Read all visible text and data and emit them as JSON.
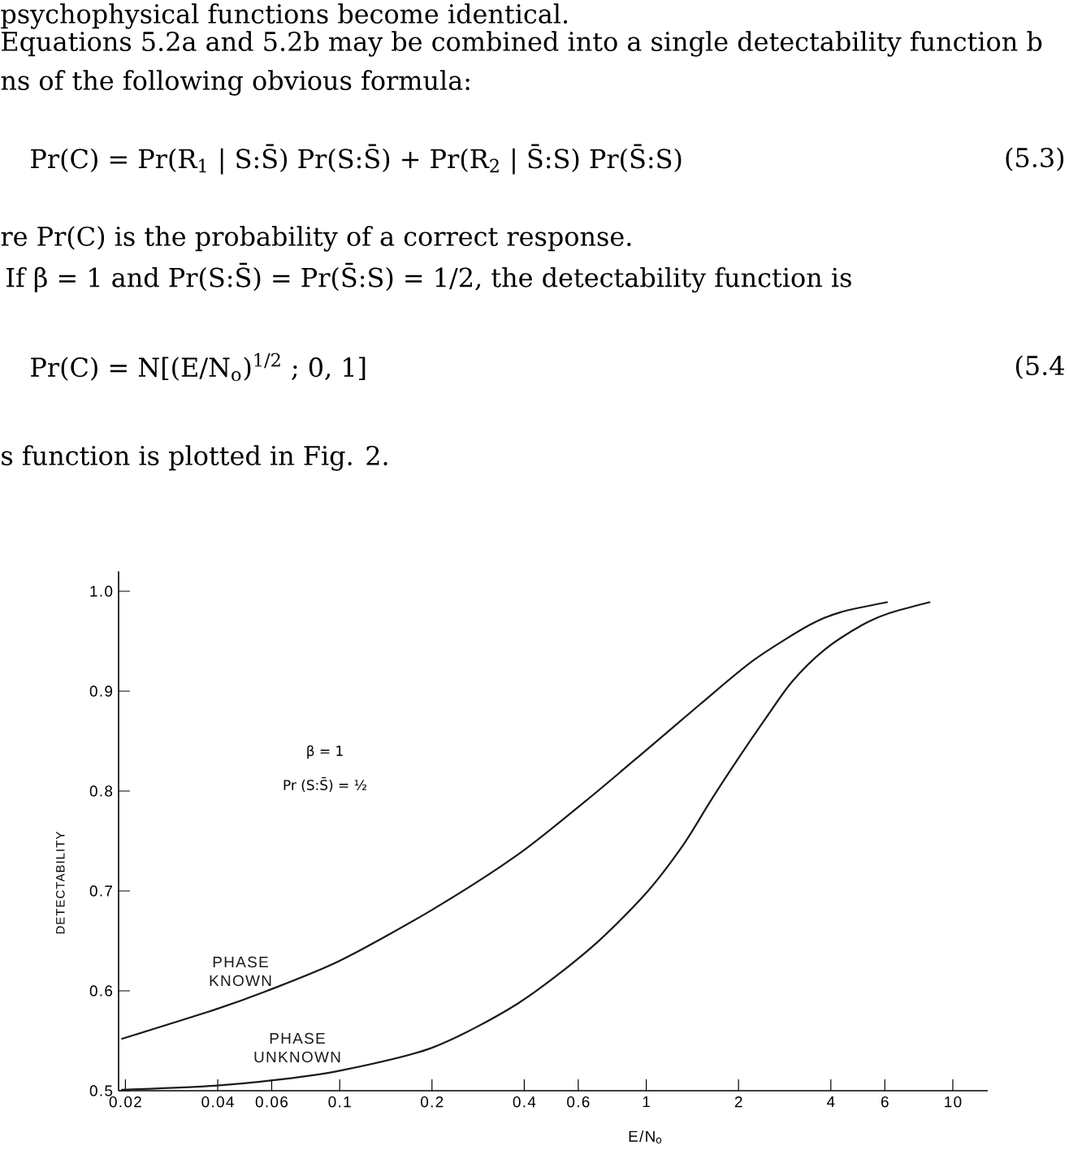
{
  "chart_data": {
    "type": "line",
    "xlabel": "E/N$_{o}$",
    "ylabel": "DETECTABILITY",
    "annotations": [
      "psychophysical functions become identical.",
      "Equations 5.2a and 5.2b may be combined into a single detectability function b",
      "ns of the following obvious formula:",
      "Pr(C) = Pr(R$_{1}$ | S:S̄) Pr(S:S̄) + Pr(R$_{2}$ | S̄:S) Pr(S̄:S)",
      "(5.3)",
      "re Pr(C) is the probability of a correct response.",
      "If β = 1 and Pr(S:S̄) = Pr(S̄:S) = 1/2, the detectability function is",
      "Pr(C) = N[(E/N$_{o}$)$^{1/2}$ ; 0, 1]",
      "(5.4",
      "s function is plotted in Fig. 2.",
      "β = 1",
      "Pr (S:S̄) = ½"
    ],
    "series": [
      {
        "name": "PHASE KNOWN",
        "color": "#1a1a1a",
        "x": [
          0.0195,
          0.039,
          0.058,
          0.1,
          0.2,
          0.38,
          0.64,
          1.0,
          1.5,
          2.24,
          3.4,
          4.3,
          6.1
        ],
        "values": [
          0.552,
          0.581,
          0.6,
          0.63,
          0.681,
          0.736,
          0.791,
          0.841,
          0.887,
          0.931,
          0.966,
          0.979,
          0.989
        ]
      },
      {
        "name": "PHASE UNKNOWN",
        "color": "#1a1a1a",
        "x": [
          0.0195,
          0.039,
          0.063,
          0.1,
          0.2,
          0.38,
          0.66,
          1.0,
          1.32,
          1.62,
          2.0,
          2.43,
          2.98,
          3.8,
          5.05,
          6.2,
          8.4
        ],
        "values": [
          0.501,
          0.505,
          0.511,
          0.52,
          0.543,
          0.587,
          0.643,
          0.698,
          0.746,
          0.79,
          0.833,
          0.871,
          0.909,
          0.941,
          0.966,
          0.978,
          0.989
        ]
      }
    ],
    "xlim": [
      0.019,
      13
    ],
    "ylim": [
      0.5,
      1.02
    ],
    "xticks": [
      0.02,
      0.04,
      0.06,
      0.1,
      0.2,
      0.4,
      0.6,
      1,
      2,
      4,
      6,
      10
    ],
    "yticks": [
      0.5,
      0.6,
      0.7,
      0.8,
      0.9,
      {
        "value": 1.0,
        "label": "1.0"
      }
    ],
    "log": "x",
    "grid": false,
    "legend": false,
    "marker": "none",
    "line_style": "solid"
  }
}
